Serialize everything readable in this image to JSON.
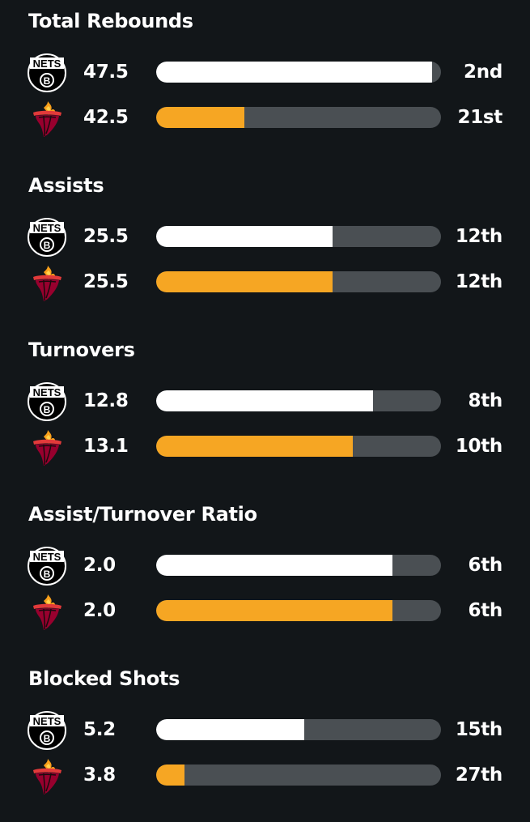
{
  "teams": {
    "nets": {
      "logo_text": "NETS",
      "logo_letter": "B",
      "icon": "nets-logo-icon",
      "bar_color": "#ffffff"
    },
    "heat": {
      "icon": "heat-logo-icon",
      "bar_color": "#f6a623"
    }
  },
  "stats": [
    {
      "title": "Total Rebounds",
      "nets": {
        "value": "47.5",
        "rank": "2nd",
        "fill_fraction": 0.97
      },
      "heat": {
        "value": "42.5",
        "rank": "21st",
        "fill_fraction": 0.31
      }
    },
    {
      "title": "Assists",
      "nets": {
        "value": "25.5",
        "rank": "12th",
        "fill_fraction": 0.62
      },
      "heat": {
        "value": "25.5",
        "rank": "12th",
        "fill_fraction": 0.62
      }
    },
    {
      "title": "Turnovers",
      "nets": {
        "value": "12.8",
        "rank": "8th",
        "fill_fraction": 0.76
      },
      "heat": {
        "value": "13.1",
        "rank": "10th",
        "fill_fraction": 0.69
      }
    },
    {
      "title": "Assist/Turnover Ratio",
      "nets": {
        "value": "2.0",
        "rank": "6th",
        "fill_fraction": 0.83
      },
      "heat": {
        "value": "2.0",
        "rank": "6th",
        "fill_fraction": 0.83
      }
    },
    {
      "title": "Blocked Shots",
      "nets": {
        "value": "5.2",
        "rank": "15th",
        "fill_fraction": 0.52
      },
      "heat": {
        "value": "3.8",
        "rank": "27th",
        "fill_fraction": 0.1
      }
    }
  ]
}
